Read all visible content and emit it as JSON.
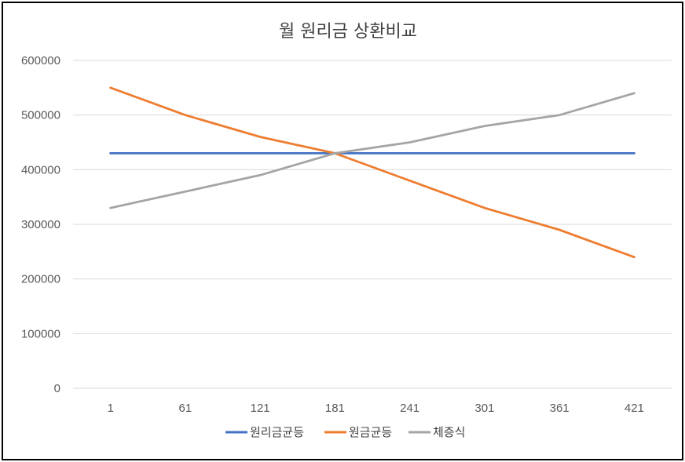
{
  "chart_data": {
    "type": "line",
    "title": "월 원리금 상환비교",
    "xlabel": "",
    "ylabel": "",
    "categories": [
      "1",
      "61",
      "121",
      "181",
      "241",
      "301",
      "361",
      "421"
    ],
    "ylim": [
      0,
      600000
    ],
    "yticks": [
      0,
      100000,
      200000,
      300000,
      400000,
      500000,
      600000
    ],
    "grid": true,
    "legend_position": "bottom",
    "series": [
      {
        "name": "원리금균등",
        "color": "#4472C4",
        "values": [
          430000,
          430000,
          430000,
          430000,
          430000,
          430000,
          430000,
          430000
        ]
      },
      {
        "name": "원금균등",
        "color": "#ED7D31",
        "values": [
          550000,
          500000,
          460000,
          430000,
          380000,
          330000,
          290000,
          240000
        ]
      },
      {
        "name": "체증식",
        "color": "#A5A5A5",
        "values": [
          330000,
          360000,
          390000,
          430000,
          450000,
          480000,
          500000,
          540000
        ]
      }
    ]
  }
}
